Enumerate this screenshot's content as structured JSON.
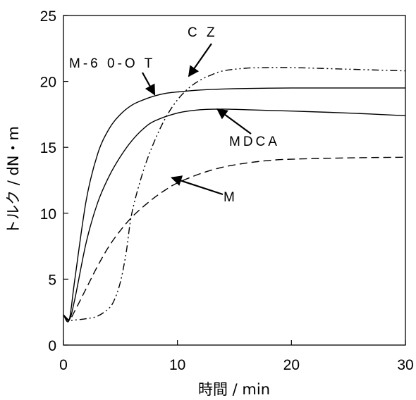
{
  "chart_data": {
    "type": "line",
    "xlabel": "時間 / min",
    "ylabel": "トルク / dN・m",
    "xlim": [
      0,
      30
    ],
    "ylim": [
      0,
      25
    ],
    "x_ticks": [
      "0",
      "10",
      "20",
      "30"
    ],
    "y_ticks": [
      "0",
      "5",
      "10",
      "15",
      "20",
      "25"
    ],
    "grid": false,
    "series": [
      {
        "name": "M-6 0-O T",
        "style": "solid",
        "x": [
          0,
          0.5,
          1,
          2,
          3,
          4,
          5,
          6,
          7,
          8,
          9,
          10,
          12,
          15,
          20,
          25,
          30
        ],
        "y": [
          2.3,
          1.9,
          5.0,
          11.0,
          14.5,
          16.4,
          17.5,
          18.2,
          18.6,
          18.9,
          19.1,
          19.2,
          19.35,
          19.45,
          19.5,
          19.5,
          19.5
        ]
      },
      {
        "name": "MDCA",
        "style": "solid",
        "x": [
          0,
          0.5,
          1,
          2,
          3,
          4,
          5,
          6,
          7,
          8,
          10,
          12,
          14,
          16,
          20,
          25,
          30
        ],
        "y": [
          2.3,
          1.9,
          3.5,
          7.8,
          10.8,
          12.8,
          14.3,
          15.5,
          16.4,
          17.0,
          17.6,
          17.85,
          17.9,
          17.85,
          17.75,
          17.6,
          17.4
        ]
      },
      {
        "name": "C Z",
        "style": "dash-dot-dot",
        "x": [
          0,
          0.5,
          1,
          2,
          3,
          4,
          4.5,
          5,
          5.5,
          6,
          7,
          8,
          9,
          10,
          11,
          12,
          13,
          14,
          16,
          18,
          20,
          24,
          28,
          30
        ],
        "y": [
          2.3,
          1.9,
          1.9,
          2.0,
          2.2,
          2.8,
          3.5,
          4.8,
          7.0,
          10.0,
          13.2,
          15.5,
          17.3,
          18.6,
          19.5,
          20.1,
          20.5,
          20.8,
          21.0,
          21.05,
          21.05,
          20.95,
          20.85,
          20.8
        ]
      },
      {
        "name": "M",
        "style": "dashed",
        "x": [
          0,
          0.5,
          1,
          2,
          3,
          4,
          5,
          6,
          7,
          8,
          9,
          10,
          12,
          14,
          16,
          18,
          20,
          25,
          30
        ],
        "y": [
          2.3,
          1.9,
          2.6,
          4.3,
          6.0,
          7.5,
          8.7,
          9.7,
          10.5,
          11.2,
          11.8,
          12.3,
          13.0,
          13.5,
          13.8,
          14.0,
          14.1,
          14.2,
          14.25
        ]
      }
    ],
    "annotations": [
      {
        "text": "C Z",
        "target": [
          11,
          20.4
        ]
      },
      {
        "text": "M-6 0-O T",
        "target": [
          8,
          19.0
        ]
      },
      {
        "text": "MDCA",
        "target": [
          13.5,
          17.9
        ]
      },
      {
        "text": "M",
        "target": [
          9.5,
          12.7
        ]
      }
    ]
  }
}
